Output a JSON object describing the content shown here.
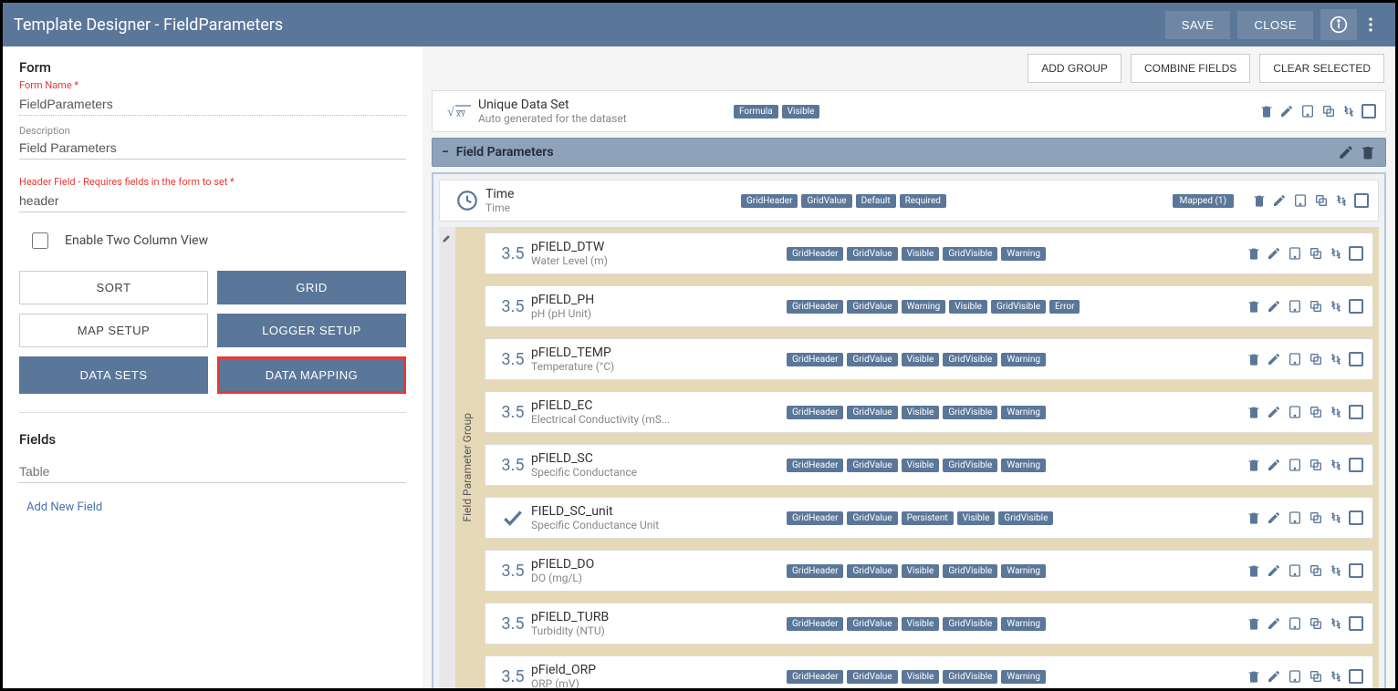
{
  "topbar": {
    "title": "Template Designer - FieldParameters",
    "save": "SAVE",
    "close": "CLOSE"
  },
  "form": {
    "section": "Form",
    "name_label": "Form Name *",
    "name_value": "FieldParameters",
    "desc_label": "Description",
    "desc_value": "Field Parameters",
    "header_label": "Header Field - Requires fields in the form to set *",
    "header_value": "header",
    "two_col": "Enable Two Column View"
  },
  "buttons": {
    "sort": "SORT",
    "grid": "GRID",
    "map_setup": "MAP SETUP",
    "logger_setup": "LOGGER SETUP",
    "data_sets": "DATA SETS",
    "data_mapping": "DATA MAPPING"
  },
  "fields": {
    "section": "Fields",
    "table": "Table",
    "add_new": "Add New Field"
  },
  "actions": {
    "add_group": "ADD GROUP",
    "combine": "COMBINE FIELDS",
    "clear": "CLEAR SELECTED"
  },
  "unique": {
    "name": "Unique Data Set",
    "sub": "Auto generated for the dataset",
    "tags": [
      "Formula",
      "Visible"
    ]
  },
  "group": {
    "title": "Field Parameters",
    "time": {
      "name": "Time",
      "sub": "Time",
      "tags": [
        "GridHeader",
        "GridValue",
        "Default",
        "Required"
      ],
      "mapped": "Mapped  (1)"
    },
    "nested_label": "Field Parameter Group",
    "rows": [
      {
        "icon": "3.5",
        "name": "pFIELD_DTW",
        "sub": "Water Level (m)",
        "tags": [
          "GridHeader",
          "GridValue",
          "Visible",
          "GridVisible",
          "Warning"
        ]
      },
      {
        "icon": "3.5",
        "name": "pFIELD_PH",
        "sub": "pH (pH Unit)",
        "tags": [
          "GridHeader",
          "GridValue",
          "Warning",
          "Visible",
          "GridVisible",
          "Error"
        ]
      },
      {
        "icon": "3.5",
        "name": "pFIELD_TEMP",
        "sub": "Temperature (°C)",
        "tags": [
          "GridHeader",
          "GridValue",
          "Visible",
          "GridVisible",
          "Warning"
        ]
      },
      {
        "icon": "3.5",
        "name": "pFIELD_EC",
        "sub": "Electrical Conductivity (mS...",
        "tags": [
          "GridHeader",
          "GridValue",
          "Visible",
          "GridVisible",
          "Warning"
        ]
      },
      {
        "icon": "3.5",
        "name": "pFIELD_SC",
        "sub": "Specific Conductance",
        "tags": [
          "GridHeader",
          "GridValue",
          "Visible",
          "GridVisible",
          "Warning"
        ]
      },
      {
        "icon": "check",
        "name": "FIELD_SC_unit",
        "sub": "Specific Conductance Unit",
        "tags": [
          "GridHeader",
          "GridValue",
          "Persistent",
          "Visible",
          "GridVisible"
        ]
      },
      {
        "icon": "3.5",
        "name": "pFIELD_DO",
        "sub": "DO (mg/L)",
        "tags": [
          "GridHeader",
          "GridValue",
          "Visible",
          "GridVisible",
          "Warning"
        ]
      },
      {
        "icon": "3.5",
        "name": "pFIELD_TURB",
        "sub": "Turbidity (NTU)",
        "tags": [
          "GridHeader",
          "GridValue",
          "Visible",
          "GridVisible",
          "Warning"
        ]
      },
      {
        "icon": "3.5",
        "name": "pField_ORP",
        "sub": "ORP (mV)",
        "tags": [
          "GridHeader",
          "GridValue",
          "Visible",
          "GridVisible",
          "Warning"
        ]
      }
    ]
  }
}
